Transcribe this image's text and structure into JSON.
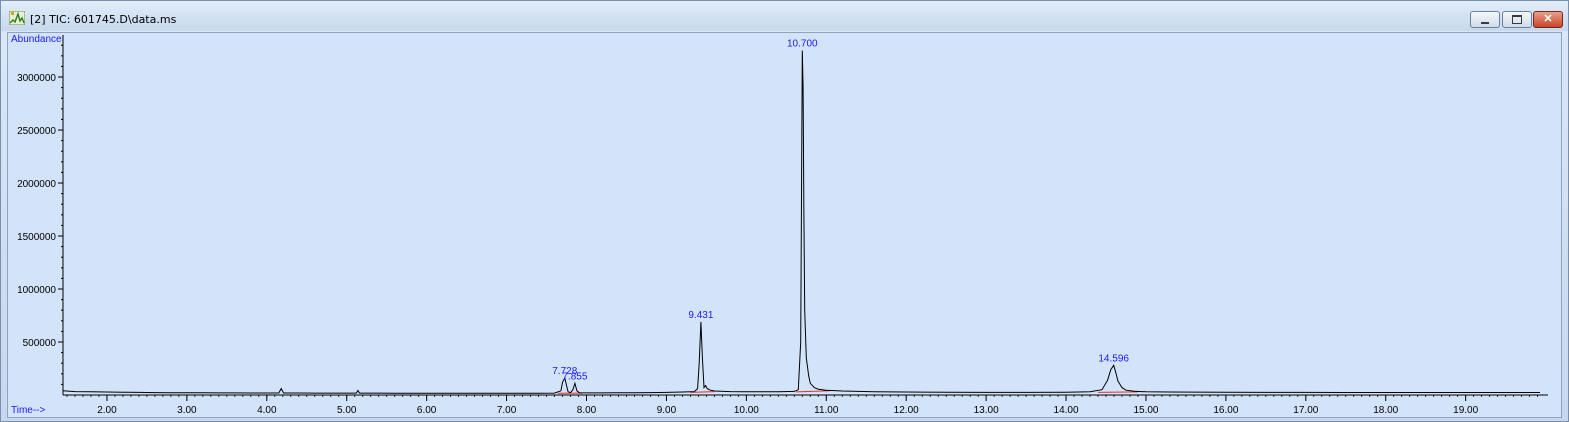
{
  "window": {
    "title": "[2] TIC: 601745.D\\data.ms",
    "icon": "chromatogram-app-icon",
    "controls": [
      "minimize-icon",
      "maximize-icon",
      "close-icon"
    ],
    "close_glyph": "✕"
  },
  "colors": {
    "plot_bg": "#d3e3f9",
    "trace": "#000000",
    "baseline": "#e0302a",
    "peak_label": "#1a1aff",
    "axis_label": "#1a1aff"
  },
  "chart_data": {
    "type": "line",
    "title": "",
    "xlabel": "Time-->",
    "ylabel": "Abundance",
    "xlim": [
      1.45,
      19.93
    ],
    "ylim": [
      0,
      3340000
    ],
    "x_ticks": [
      "2.00",
      "3.00",
      "4.00",
      "5.00",
      "6.00",
      "7.00",
      "8.00",
      "9.00",
      "10.00",
      "11.00",
      "12.00",
      "13.00",
      "14.00",
      "15.00",
      "16.00",
      "17.00",
      "18.00",
      "19.00"
    ],
    "y_ticks": [
      "500000",
      "1000000",
      "1500000",
      "2000000",
      "2500000",
      "3000000"
    ],
    "grid": false,
    "peak_labels": [
      {
        "label": "7.728",
        "x": 7.728,
        "y": 160000
      },
      {
        "label": "7.855",
        "x": 7.855,
        "y": 110000
      },
      {
        "label": "9.431",
        "x": 9.431,
        "y": 690000
      },
      {
        "label": "10.700",
        "x": 10.7,
        "y": 3250000
      },
      {
        "label": "14.596",
        "x": 14.596,
        "y": 280000
      }
    ],
    "series": [
      {
        "x": [
          1.45,
          1.6,
          1.8,
          2.0,
          2.2,
          2.4,
          2.6,
          2.8,
          3.0,
          3.2,
          3.4,
          3.6,
          3.8,
          4.0,
          4.15,
          4.18,
          4.21,
          4.4,
          4.6,
          4.8,
          5.0,
          5.12,
          5.14,
          5.16,
          5.4,
          5.6,
          5.8,
          6.0,
          6.2,
          6.4,
          6.6,
          6.8,
          7.0,
          7.2,
          7.4,
          7.6,
          7.68,
          7.7,
          7.728,
          7.75,
          7.77,
          7.8,
          7.83,
          7.855,
          7.88,
          7.91,
          8.0,
          8.2,
          8.4,
          8.6,
          8.8,
          9.0,
          9.2,
          9.35,
          9.39,
          9.41,
          9.431,
          9.45,
          9.47,
          9.49,
          9.51,
          9.55,
          9.6,
          9.8,
          10.0,
          10.2,
          10.4,
          10.6,
          10.65,
          10.68,
          10.7,
          10.71,
          10.72,
          10.73,
          10.75,
          10.78,
          10.8,
          10.85,
          10.9,
          11.0,
          11.2,
          11.4,
          11.6,
          11.8,
          12.0,
          12.2,
          12.5,
          13.0,
          13.5,
          14.0,
          14.3,
          14.45,
          14.52,
          14.56,
          14.596,
          14.62,
          14.65,
          14.7,
          14.75,
          14.85,
          15.0,
          15.3,
          15.6,
          16.0,
          16.5,
          17.0,
          17.5,
          18.0,
          18.5,
          19.0,
          19.5,
          19.93
        ],
        "values": [
          40000,
          32000,
          30000,
          28000,
          26000,
          25000,
          23000,
          22000,
          22000,
          21000,
          20000,
          20000,
          19000,
          19000,
          19000,
          60000,
          19000,
          19000,
          18000,
          18000,
          18000,
          18000,
          42000,
          18000,
          18000,
          17000,
          17000,
          17000,
          17000,
          17000,
          16000,
          16000,
          16000,
          16000,
          17000,
          18000,
          40000,
          120000,
          160000,
          90000,
          30000,
          22000,
          50000,
          110000,
          40000,
          22000,
          20000,
          20000,
          21000,
          22000,
          23000,
          25000,
          28000,
          32000,
          60000,
          300000,
          690000,
          350000,
          70000,
          90000,
          60000,
          45000,
          38000,
          32000,
          30000,
          30000,
          31000,
          34000,
          50000,
          500000,
          3250000,
          2900000,
          1700000,
          800000,
          350000,
          180000,
          110000,
          70000,
          55000,
          45000,
          38000,
          34000,
          31000,
          29000,
          28000,
          27000,
          26000,
          25000,
          25000,
          26000,
          30000,
          50000,
          140000,
          240000,
          280000,
          220000,
          130000,
          70000,
          45000,
          35000,
          30000,
          28000,
          27000,
          26000,
          25000,
          25000,
          24000,
          24000,
          24000,
          24000,
          24000,
          24000
        ]
      }
    ],
    "baselines": [
      {
        "x": [
          7.64,
          7.95
        ],
        "y": [
          16000,
          18000
        ]
      },
      {
        "x": [
          9.3,
          9.6
        ],
        "y": [
          25000,
          32000
        ]
      },
      {
        "x": [
          10.62,
          11.05
        ],
        "y": [
          30000,
          40000
        ]
      },
      {
        "x": [
          14.4,
          14.9
        ],
        "y": [
          25000,
          30000
        ]
      }
    ]
  }
}
